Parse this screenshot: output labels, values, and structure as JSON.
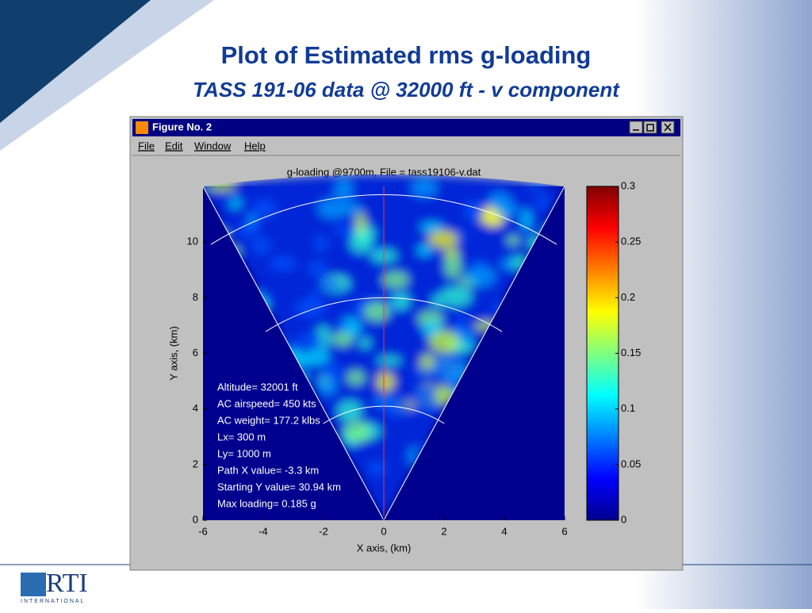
{
  "slide": {
    "title": "Plot of Estimated rms g-loading",
    "subtitle": "TASS 191-06 data @ 32000 ft  - v component"
  },
  "window": {
    "title": "Figure No. 2",
    "menu": [
      "File",
      "Edit",
      "Window",
      "Help"
    ]
  },
  "plot": {
    "title": "g-loading @9700m, File = tass19106-v.dat",
    "xlabel": "X axis, (km)",
    "ylabel": "Y axis, (km)",
    "xlim": [
      -6,
      6
    ],
    "xticks": [
      -6,
      -4,
      -2,
      0,
      2,
      4,
      6
    ],
    "ylim": [
      0,
      12
    ],
    "yticks": [
      0,
      2,
      4,
      6,
      8,
      10
    ],
    "colorbar": {
      "lim": [
        0,
        0.3
      ],
      "ticks": [
        0,
        0.05,
        0.1,
        0.15,
        0.2,
        0.25,
        0.3
      ]
    },
    "annotations": [
      "Altitude= 32001 ft",
      "AC airspeed= 450 kts",
      "AC weight= 177.2 klbs",
      "Lx= 300 m",
      "Ly= 1000 m",
      "Path X value= -3.3 km",
      "Starting Y value= 30.94 km",
      "Max loading= 0.185 g"
    ]
  },
  "logo": {
    "name": "RTI",
    "tagline": "INTERNATIONAL"
  }
}
